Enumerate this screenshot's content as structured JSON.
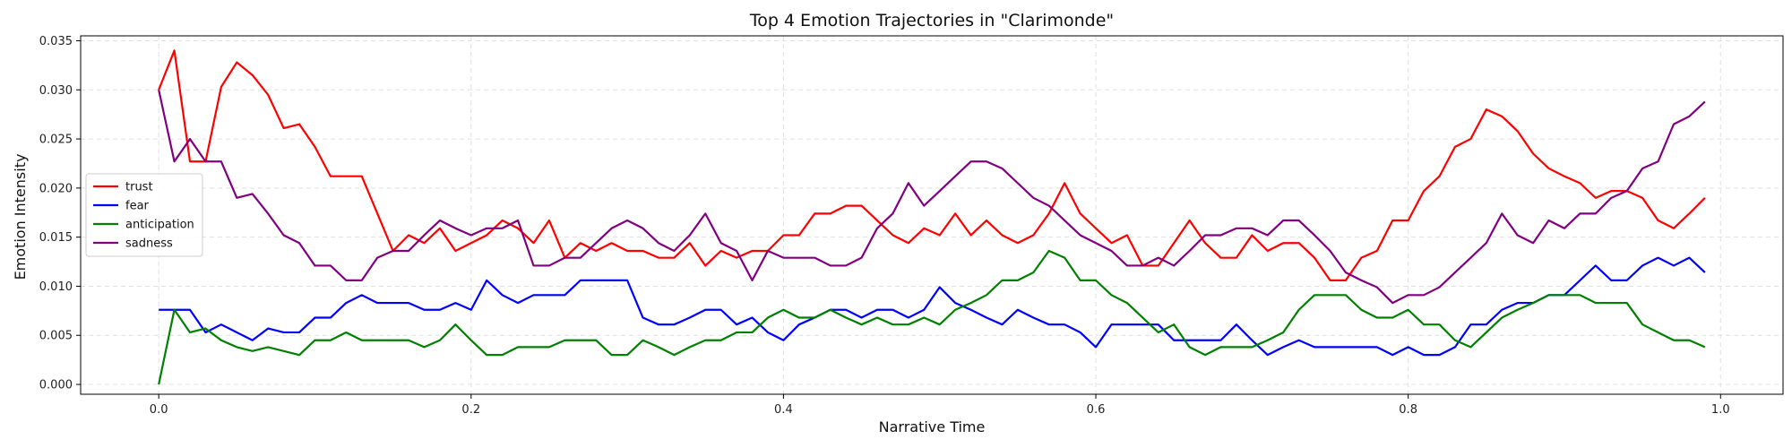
{
  "chart_data": {
    "type": "line",
    "title": "Top 4 Emotion Trajectories in \"Clarimonde\"",
    "xlabel": "Narrative Time",
    "ylabel": "Emotion Intensity",
    "xlim": [
      -0.05,
      1.04
    ],
    "ylim": [
      -0.001,
      0.0355
    ],
    "xticks": [
      0.0,
      0.2,
      0.4,
      0.6,
      0.8,
      1.0
    ],
    "xtick_labels": [
      "0.0",
      "0.2",
      "0.4",
      "0.6",
      "0.8",
      "1.0"
    ],
    "yticks": [
      0.0,
      0.005,
      0.01,
      0.015,
      0.02,
      0.025,
      0.03,
      0.035
    ],
    "ytick_labels": [
      "0.000",
      "0.005",
      "0.010",
      "0.015",
      "0.020",
      "0.025",
      "0.030",
      "0.035"
    ],
    "grid": true,
    "legend_position": "center-left",
    "x_start": 0.0,
    "x_step": 0.01,
    "series": [
      {
        "name": "trust",
        "color": "#ff0000",
        "values": [
          0.03,
          0.034,
          0.0227,
          0.0227,
          0.0303,
          0.0328,
          0.0315,
          0.0295,
          0.0261,
          0.0265,
          0.0242,
          0.0212,
          0.0212,
          0.0212,
          0.0174,
          0.0136,
          0.0152,
          0.0144,
          0.0159,
          0.0136,
          0.0144,
          0.0152,
          0.0167,
          0.0159,
          0.0144,
          0.0167,
          0.0129,
          0.0144,
          0.0136,
          0.0144,
          0.0136,
          0.0136,
          0.0129,
          0.0129,
          0.0144,
          0.0121,
          0.0136,
          0.0129,
          0.0136,
          0.0136,
          0.0152,
          0.0152,
          0.0174,
          0.0174,
          0.0182,
          0.0182,
          0.0167,
          0.0152,
          0.0144,
          0.0159,
          0.0152,
          0.0174,
          0.0152,
          0.0167,
          0.0152,
          0.0144,
          0.0152,
          0.0174,
          0.0205,
          0.0174,
          0.0159,
          0.0144,
          0.0152,
          0.0121,
          0.0121,
          0.0144,
          0.0167,
          0.0144,
          0.0129,
          0.0129,
          0.0152,
          0.0136,
          0.0144,
          0.0144,
          0.0129,
          0.0106,
          0.0106,
          0.0129,
          0.0136,
          0.0167,
          0.0167,
          0.0197,
          0.0212,
          0.0242,
          0.025,
          0.028,
          0.0273,
          0.0258,
          0.0235,
          0.022,
          0.0212,
          0.0205,
          0.019,
          0.0197,
          0.0197,
          0.019,
          0.0167,
          0.0159,
          0.0174,
          0.019
        ]
      },
      {
        "name": "fear",
        "color": "#0000ff",
        "values": [
          0.0076,
          0.0076,
          0.0076,
          0.0053,
          0.0061,
          0.0053,
          0.0045,
          0.0057,
          0.0053,
          0.0053,
          0.0068,
          0.0068,
          0.0083,
          0.0091,
          0.0083,
          0.0083,
          0.0083,
          0.0076,
          0.0076,
          0.0083,
          0.0076,
          0.0106,
          0.0091,
          0.0083,
          0.0091,
          0.0091,
          0.0091,
          0.0106,
          0.0106,
          0.0106,
          0.0106,
          0.0068,
          0.0061,
          0.0061,
          0.0068,
          0.0076,
          0.0076,
          0.0061,
          0.0068,
          0.0053,
          0.0045,
          0.0061,
          0.0068,
          0.0076,
          0.0076,
          0.0068,
          0.0076,
          0.0076,
          0.0068,
          0.0076,
          0.0099,
          0.0083,
          0.0076,
          0.0068,
          0.0061,
          0.0076,
          0.0068,
          0.0061,
          0.0061,
          0.0053,
          0.0038,
          0.0061,
          0.0061,
          0.0061,
          0.0061,
          0.0045,
          0.0045,
          0.0045,
          0.0045,
          0.0061,
          0.0045,
          0.003,
          0.0038,
          0.0045,
          0.0038,
          0.0038,
          0.0038,
          0.0038,
          0.0038,
          0.003,
          0.0038,
          0.003,
          0.003,
          0.0038,
          0.0061,
          0.0061,
          0.0076,
          0.0083,
          0.0083,
          0.0091,
          0.0091,
          0.0106,
          0.0121,
          0.0106,
          0.0106,
          0.0121,
          0.0129,
          0.0121,
          0.0129,
          0.0114
        ]
      },
      {
        "name": "anticipation",
        "color": "#008000",
        "values": [
          0.0,
          0.0076,
          0.0053,
          0.0057,
          0.0045,
          0.0038,
          0.0034,
          0.0038,
          0.0034,
          0.003,
          0.0045,
          0.0045,
          0.0053,
          0.0045,
          0.0045,
          0.0045,
          0.0045,
          0.0038,
          0.0045,
          0.0061,
          0.0045,
          0.003,
          0.003,
          0.0038,
          0.0038,
          0.0038,
          0.0045,
          0.0045,
          0.0045,
          0.003,
          0.003,
          0.0045,
          0.0038,
          0.003,
          0.0038,
          0.0045,
          0.0045,
          0.0053,
          0.0053,
          0.0068,
          0.0076,
          0.0068,
          0.0068,
          0.0076,
          0.0068,
          0.0061,
          0.0068,
          0.0061,
          0.0061,
          0.0068,
          0.0061,
          0.0076,
          0.0083,
          0.0091,
          0.0106,
          0.0106,
          0.0114,
          0.0136,
          0.0129,
          0.0106,
          0.0106,
          0.0091,
          0.0083,
          0.0068,
          0.0053,
          0.0061,
          0.0038,
          0.003,
          0.0038,
          0.0038,
          0.0038,
          0.0045,
          0.0053,
          0.0076,
          0.0091,
          0.0091,
          0.0091,
          0.0076,
          0.0068,
          0.0068,
          0.0076,
          0.0061,
          0.0061,
          0.0045,
          0.0038,
          0.0053,
          0.0068,
          0.0076,
          0.0083,
          0.0091,
          0.0091,
          0.0091,
          0.0083,
          0.0083,
          0.0083,
          0.0061,
          0.0053,
          0.0045,
          0.0045,
          0.0038
        ]
      },
      {
        "name": "sadness",
        "color": "#800080",
        "values": [
          0.03,
          0.0227,
          0.025,
          0.0227,
          0.0227,
          0.019,
          0.0194,
          0.0174,
          0.0152,
          0.0144,
          0.0121,
          0.0121,
          0.0106,
          0.0106,
          0.0129,
          0.0136,
          0.0136,
          0.0152,
          0.0167,
          0.0159,
          0.0152,
          0.0159,
          0.0159,
          0.0167,
          0.0121,
          0.0121,
          0.0129,
          0.0129,
          0.0144,
          0.0159,
          0.0167,
          0.0159,
          0.0144,
          0.0136,
          0.0152,
          0.0174,
          0.0144,
          0.0136,
          0.0106,
          0.0136,
          0.0129,
          0.0129,
          0.0129,
          0.0121,
          0.0121,
          0.0129,
          0.0159,
          0.0174,
          0.0205,
          0.0182,
          0.0197,
          0.0212,
          0.0227,
          0.0227,
          0.022,
          0.0205,
          0.019,
          0.0182,
          0.0167,
          0.0152,
          0.0144,
          0.0136,
          0.0121,
          0.0121,
          0.0129,
          0.0121,
          0.0136,
          0.0152,
          0.0152,
          0.0159,
          0.0159,
          0.0152,
          0.0167,
          0.0167,
          0.0152,
          0.0136,
          0.0114,
          0.0106,
          0.0099,
          0.0083,
          0.0091,
          0.0091,
          0.0099,
          0.0114,
          0.0129,
          0.0144,
          0.0174,
          0.0152,
          0.0144,
          0.0167,
          0.0159,
          0.0174,
          0.0174,
          0.019,
          0.0197,
          0.022,
          0.0227,
          0.0265,
          0.0273,
          0.0288
        ]
      }
    ]
  }
}
